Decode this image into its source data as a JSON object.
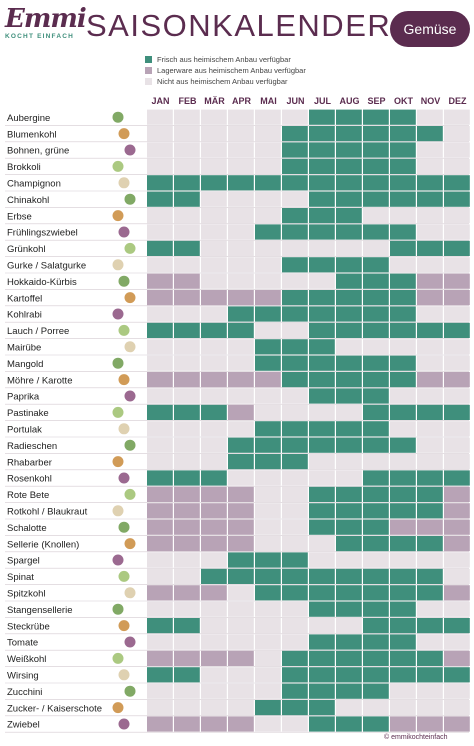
{
  "header": {
    "logo_text": "Emmi",
    "logo_sub": "KOCHT EINFACH",
    "title": "SAISONKALENDER",
    "badge": "Gemüse"
  },
  "legend": [
    {
      "label": "Frisch aus heimischem Anbau verfügbar",
      "color": "#3f8f7c"
    },
    {
      "label": "Lagerware aus heimischem Anbau verfügbar",
      "color": "#b8a3b6"
    },
    {
      "label": "Nicht aus heimischem Anbau verfügbar",
      "color": "#e8e2e6"
    }
  ],
  "footer": "© emmikochteinfach",
  "chart_data": {
    "type": "heatmap",
    "title": "SAISONKALENDER",
    "months": [
      "JAN",
      "FEB",
      "MÄR",
      "APR",
      "MAI",
      "JUN",
      "JUL",
      "AUG",
      "SEP",
      "OKT",
      "NOV",
      "DEZ"
    ],
    "value_legend": {
      "F": "Frisch aus heimischem Anbau verfügbar",
      "L": "Lagerware aus heimischem Anbau verfügbar",
      "N": "Nicht aus heimischem Anbau verfügbar"
    },
    "colors": {
      "F": "#3f8f7c",
      "L": "#b8a3b6",
      "N": "#e8e2e6"
    },
    "rows": [
      {
        "name": "Aubergine",
        "months": "NNNNNNFFFFNN"
      },
      {
        "name": "Blumenkohl",
        "months": "NNNNNFFFFFFN"
      },
      {
        "name": "Bohnen, grüne",
        "months": "NNNNNFFFFFNN"
      },
      {
        "name": "Brokkoli",
        "months": "NNNNNFFFFFNN"
      },
      {
        "name": "Champignon",
        "months": "FFFFFFFFFFFF"
      },
      {
        "name": "Chinakohl",
        "months": "FFNNNNFFFFFF"
      },
      {
        "name": "Erbse",
        "months": "NNNNNFFFNNNN"
      },
      {
        "name": "Frühlingszwiebel",
        "months": "NNNNFFFFFFNN"
      },
      {
        "name": "Grünkohl",
        "months": "FFNNNNNNNFFF"
      },
      {
        "name": "Gurke / Salatgurke",
        "months": "NNNNNFFFFNNN"
      },
      {
        "name": "Hokkaido-Kürbis",
        "months": "LLNNNNNFFFLL"
      },
      {
        "name": "Kartoffel",
        "months": "LLLLLFFFFFLL"
      },
      {
        "name": "Kohlrabi",
        "months": "NNNFFFFFFFNN"
      },
      {
        "name": "Lauch / Porree",
        "months": "FFFFNNFFFFFF"
      },
      {
        "name": "Mairübe",
        "months": "NNNNFFFNNNNN"
      },
      {
        "name": "Mangold",
        "months": "NNNNFFFFFFNN"
      },
      {
        "name": "Möhre / Karotte",
        "months": "LLLLLFFFFFLL"
      },
      {
        "name": "Paprika",
        "months": "NNNNNNFFFNNN"
      },
      {
        "name": "Pastinake",
        "months": "FFFLNNNNFFFF"
      },
      {
        "name": "Portulak",
        "months": "NNNNFFFFFNNN"
      },
      {
        "name": "Radieschen",
        "months": "NNNFFFFFFFNN"
      },
      {
        "name": "Rhabarber",
        "months": "NNNFFFNNNNNN"
      },
      {
        "name": "Rosenkohl",
        "months": "FFFNNNNNFFFF"
      },
      {
        "name": "Rote Bete",
        "months": "LLLLNNFFFFFL"
      },
      {
        "name": "Rotkohl / Blaukraut",
        "months": "LLLLNNFFFFFL"
      },
      {
        "name": "Schalotte",
        "months": "LLLLNNFFFLLL"
      },
      {
        "name": "Sellerie (Knollen)",
        "months": "LLLLNNNFFFFL"
      },
      {
        "name": "Spargel",
        "months": "NNNFFFNNNNNN"
      },
      {
        "name": "Spinat",
        "months": "NNFFFFFFFFFN"
      },
      {
        "name": "Spitzkohl",
        "months": "LLLNFFFFFFFL"
      },
      {
        "name": "Stangensellerie",
        "months": "NNNNNNFFFFNN"
      },
      {
        "name": "Steckrübe",
        "months": "FFNNNNNNFFFF"
      },
      {
        "name": "Tomate",
        "months": "NNNNNNFFFFNN"
      },
      {
        "name": "Weißkohl",
        "months": "LLLLNFFFFFFL"
      },
      {
        "name": "Wirsing",
        "months": "FFNNNFFFFFFF"
      },
      {
        "name": "Zucchini",
        "months": "NNNNNFFFFNNN"
      },
      {
        "name": "Zucker- / Kaiserschote",
        "months": "NNNNFFFNNNNN"
      },
      {
        "name": "Zwiebel",
        "months": "LLLLNNFFFLLL"
      }
    ]
  }
}
